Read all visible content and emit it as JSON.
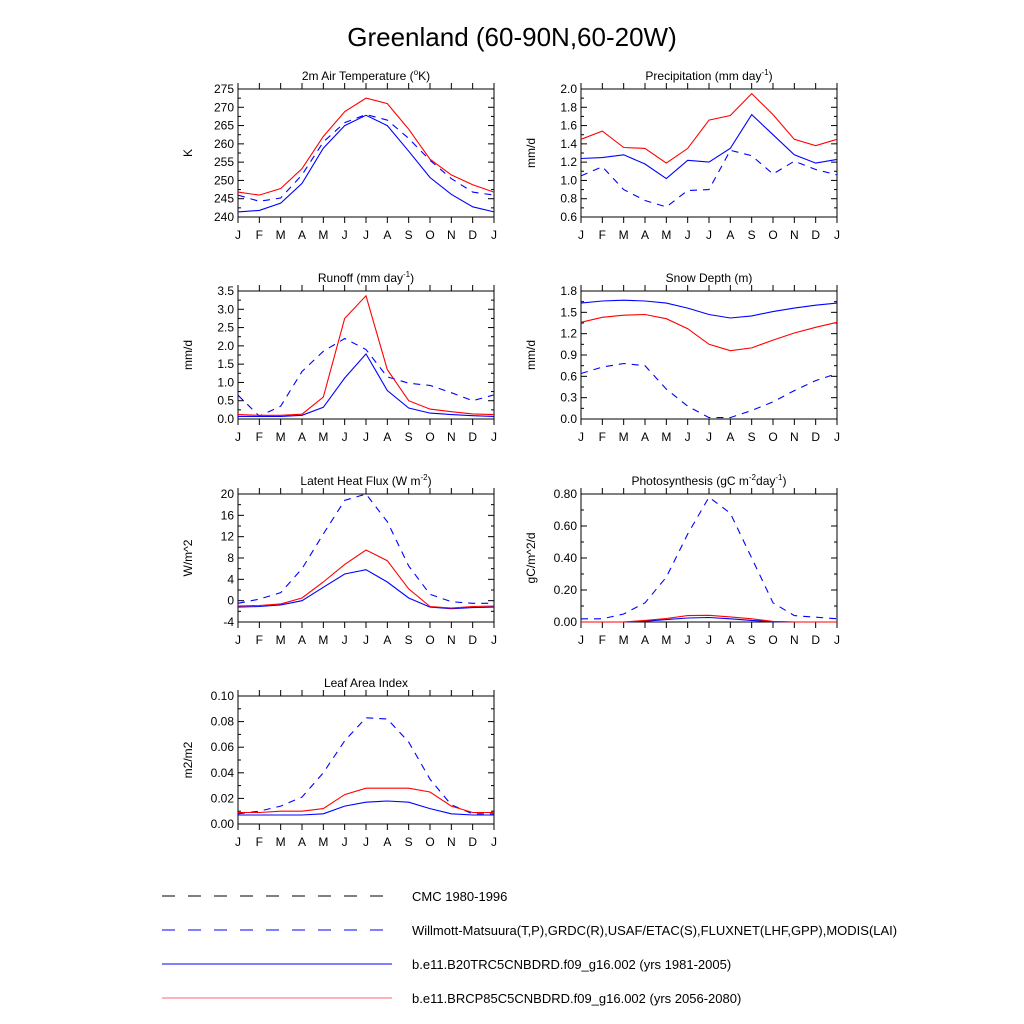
{
  "figure": {
    "title": "Greenland (60-90N,60-20W)"
  },
  "months": [
    "J",
    "F",
    "M",
    "A",
    "M",
    "J",
    "J",
    "A",
    "S",
    "O",
    "N",
    "D",
    "J"
  ],
  "colors": {
    "obs": "#0000ff",
    "obs_black": "#000000",
    "run1": "#0000ff",
    "run2": "#ff0000"
  },
  "chart_data": [
    {
      "type": "line",
      "title": "2m Air Temperature",
      "title_units_pre": " (",
      "title_units_sup": "o",
      "title_units_post": "K)",
      "ylabel": "K",
      "ylim": [
        240,
        275
      ],
      "yticks": [
        240,
        245,
        250,
        255,
        260,
        265,
        270,
        275
      ],
      "ytick_labels": [
        "240",
        "245",
        "250",
        "255",
        "260",
        "265",
        "270",
        "275"
      ],
      "x": [
        "J",
        "F",
        "M",
        "A",
        "M",
        "J",
        "J",
        "A",
        "S",
        "O",
        "N",
        "D",
        "J"
      ],
      "series": [
        {
          "key": "obs",
          "style": "dashed",
          "color": "#0000ff",
          "values": [
            246,
            244.3,
            245.2,
            251.5,
            260.5,
            265.8,
            268,
            266.5,
            261.5,
            255.5,
            250.5,
            246.8,
            246
          ]
        },
        {
          "key": "run1",
          "style": "solid",
          "color": "#0000ff",
          "values": [
            241.4,
            241.8,
            243.8,
            249.2,
            258.8,
            265,
            267.8,
            265,
            258,
            250.8,
            246.2,
            242.8,
            241.4
          ]
        },
        {
          "key": "run2",
          "style": "solid",
          "color": "#ff0000",
          "values": [
            246.8,
            246,
            247.8,
            253.2,
            262,
            268.8,
            272.5,
            271,
            264,
            255.8,
            251.5,
            248.8,
            246.8
          ]
        }
      ]
    },
    {
      "type": "line",
      "title": "Precipitation",
      "title_units_pre": " (mm day",
      "title_units_sup": "-1",
      "title_units_post": ")",
      "ylabel": "mm/d",
      "ylim": [
        0.6,
        2.0
      ],
      "yticks": [
        0.6,
        0.8,
        1.0,
        1.2,
        1.4,
        1.6,
        1.8,
        2.0
      ],
      "ytick_labels": [
        "0.6",
        "0.8",
        "1.0",
        "1.2",
        "1.4",
        "1.6",
        "1.8",
        "2.0"
      ],
      "x": [
        "J",
        "F",
        "M",
        "A",
        "M",
        "J",
        "J",
        "A",
        "S",
        "O",
        "N",
        "D",
        "J"
      ],
      "series": [
        {
          "key": "obs",
          "style": "dashed",
          "color": "#0000ff",
          "values": [
            1.05,
            1.15,
            0.9,
            0.78,
            0.71,
            0.89,
            0.9,
            1.33,
            1.27,
            1.07,
            1.21,
            1.12,
            1.06
          ]
        },
        {
          "key": "run1",
          "style": "solid",
          "color": "#0000ff",
          "values": [
            1.24,
            1.25,
            1.28,
            1.18,
            1.02,
            1.22,
            1.2,
            1.35,
            1.72,
            1.5,
            1.28,
            1.19,
            1.23
          ]
        },
        {
          "key": "run2",
          "style": "solid",
          "color": "#ff0000",
          "values": [
            1.45,
            1.54,
            1.36,
            1.35,
            1.19,
            1.35,
            1.66,
            1.71,
            1.95,
            1.72,
            1.45,
            1.38,
            1.45
          ]
        }
      ]
    },
    {
      "type": "line",
      "title": "Runoff",
      "title_units_pre": " (mm day",
      "title_units_sup": "-1",
      "title_units_post": ")",
      "ylabel": "mm/d",
      "ylim": [
        0.0,
        3.5
      ],
      "yticks": [
        0.0,
        0.5,
        1.0,
        1.5,
        2.0,
        2.5,
        3.0,
        3.5
      ],
      "ytick_labels": [
        "0.0",
        "0.5",
        "1.0",
        "1.5",
        "2.0",
        "2.5",
        "3.0",
        "3.5"
      ],
      "x": [
        "J",
        "F",
        "M",
        "A",
        "M",
        "J",
        "J",
        "A",
        "S",
        "O",
        "N",
        "D",
        "J"
      ],
      "series": [
        {
          "key": "obs",
          "style": "dashed",
          "color": "#0000ff",
          "values": [
            0.65,
            0.08,
            0.35,
            1.3,
            1.85,
            2.2,
            1.9,
            1.15,
            0.98,
            0.92,
            0.72,
            0.5,
            0.66
          ]
        },
        {
          "key": "run1",
          "style": "solid",
          "color": "#0000ff",
          "values": [
            0.07,
            0.07,
            0.07,
            0.1,
            0.32,
            1.12,
            1.78,
            0.78,
            0.3,
            0.16,
            0.12,
            0.09,
            0.07
          ]
        },
        {
          "key": "run2",
          "style": "solid",
          "color": "#ff0000",
          "values": [
            0.12,
            0.1,
            0.1,
            0.13,
            0.6,
            2.75,
            3.37,
            1.35,
            0.5,
            0.27,
            0.2,
            0.14,
            0.12
          ]
        }
      ]
    },
    {
      "type": "line",
      "title": "Snow Depth (m)",
      "title_units_pre": "",
      "title_units_sup": "",
      "title_units_post": "",
      "ylabel": "mm/d",
      "ylim": [
        0.0,
        1.8
      ],
      "yticks": [
        0.0,
        0.3,
        0.6,
        0.9,
        1.2,
        1.5,
        1.8
      ],
      "ytick_labels": [
        "0.0",
        "0.3",
        "0.6",
        "0.9",
        "1.2",
        "1.5",
        "1.8"
      ],
      "x": [
        "J",
        "F",
        "M",
        "A",
        "M",
        "J",
        "J",
        "A",
        "S",
        "O",
        "N",
        "D",
        "J"
      ],
      "series": [
        {
          "key": "obs_black",
          "style": "dashed",
          "color": "#000000",
          "values": [
            0,
            0,
            0,
            0,
            0,
            0,
            0,
            0,
            0,
            0,
            0,
            0,
            0
          ]
        },
        {
          "key": "obs",
          "style": "dashed",
          "color": "#0000ff",
          "values": [
            0.64,
            0.73,
            0.78,
            0.75,
            0.42,
            0.18,
            0.02,
            0.02,
            0.12,
            0.24,
            0.4,
            0.54,
            0.64
          ]
        },
        {
          "key": "run1",
          "style": "solid",
          "color": "#0000ff",
          "values": [
            1.63,
            1.66,
            1.67,
            1.66,
            1.63,
            1.56,
            1.47,
            1.42,
            1.45,
            1.51,
            1.56,
            1.6,
            1.63
          ]
        },
        {
          "key": "run2",
          "style": "solid",
          "color": "#ff0000",
          "values": [
            1.36,
            1.43,
            1.46,
            1.47,
            1.41,
            1.27,
            1.05,
            0.96,
            1.0,
            1.11,
            1.21,
            1.29,
            1.36
          ]
        }
      ]
    },
    {
      "type": "line",
      "title": "Latent Heat Flux",
      "title_units_pre": " (W m",
      "title_units_sup": "-2",
      "title_units_post": ")",
      "ylabel": "W/m^2",
      "ylim": [
        -4,
        20
      ],
      "yticks": [
        -4,
        0,
        4,
        8,
        12,
        16,
        20
      ],
      "ytick_labels": [
        "-4",
        "0",
        "4",
        "8",
        "12",
        "16",
        "20"
      ],
      "x": [
        "J",
        "F",
        "M",
        "A",
        "M",
        "J",
        "J",
        "A",
        "S",
        "O",
        "N",
        "D",
        "J"
      ],
      "series": [
        {
          "key": "obs",
          "style": "dashed",
          "color": "#0000ff",
          "values": [
            -0.5,
            0.3,
            1.5,
            6,
            12.5,
            18.8,
            20,
            14.8,
            6.5,
            1.2,
            -0.2,
            -0.5,
            -0.5
          ]
        },
        {
          "key": "run1",
          "style": "solid",
          "color": "#0000ff",
          "values": [
            -1.2,
            -1.1,
            -0.8,
            0,
            2.5,
            5,
            5.8,
            3.5,
            0.5,
            -1.2,
            -1.5,
            -1.3,
            -1.2
          ]
        },
        {
          "key": "run2",
          "style": "solid",
          "color": "#ff0000",
          "values": [
            -1,
            -0.9,
            -0.6,
            0.5,
            3.5,
            6.8,
            9.5,
            7.5,
            2.2,
            -1.1,
            -1.4,
            -1.1,
            -1
          ]
        }
      ]
    },
    {
      "type": "line",
      "title": "Photosynthesis",
      "title_units_pre": " (gC m",
      "title_units_sup": "-2",
      "title_units_post": "day",
      "title_units_sup2": "-1",
      "title_units_post2": ")",
      "ylabel": "gC/m^2/d",
      "ylim": [
        0.0,
        0.8
      ],
      "yticks": [
        0.0,
        0.2,
        0.4,
        0.6,
        0.8
      ],
      "ytick_labels": [
        "0.00",
        "0.20",
        "0.40",
        "0.60",
        "0.80"
      ],
      "x": [
        "J",
        "F",
        "M",
        "A",
        "M",
        "J",
        "J",
        "A",
        "S",
        "O",
        "N",
        "D",
        "J"
      ],
      "series": [
        {
          "key": "obs",
          "style": "dashed",
          "color": "#0000ff",
          "values": [
            0.02,
            0.02,
            0.05,
            0.12,
            0.28,
            0.55,
            0.78,
            0.68,
            0.4,
            0.12,
            0.04,
            0.03,
            0.02
          ]
        },
        {
          "key": "run1",
          "style": "solid",
          "color": "#0000ff",
          "values": [
            0,
            0,
            0,
            0.005,
            0.015,
            0.025,
            0.028,
            0.02,
            0.01,
            0.002,
            0,
            0,
            0
          ]
        },
        {
          "key": "run2",
          "style": "solid",
          "color": "#ff0000",
          "values": [
            0,
            0,
            0,
            0.01,
            0.022,
            0.04,
            0.042,
            0.032,
            0.02,
            0.004,
            0,
            0,
            0
          ]
        }
      ]
    },
    {
      "type": "line",
      "title": "Leaf Area Index",
      "title_units_pre": "",
      "title_units_sup": "",
      "title_units_post": "",
      "ylabel": "m2/m2",
      "ylim": [
        0.0,
        0.1
      ],
      "yticks": [
        0.0,
        0.02,
        0.04,
        0.06,
        0.08,
        0.1
      ],
      "ytick_labels": [
        "0.00",
        "0.02",
        "0.04",
        "0.06",
        "0.08",
        "0.10"
      ],
      "x": [
        "J",
        "F",
        "M",
        "A",
        "M",
        "J",
        "J",
        "A",
        "S",
        "O",
        "N",
        "D",
        "J"
      ],
      "series": [
        {
          "key": "obs",
          "style": "dashed",
          "color": "#0000ff",
          "values": [
            0.008,
            0.01,
            0.014,
            0.021,
            0.04,
            0.065,
            0.083,
            0.082,
            0.064,
            0.035,
            0.015,
            0.008,
            0.008
          ]
        },
        {
          "key": "run1",
          "style": "solid",
          "color": "#0000ff",
          "values": [
            0.007,
            0.007,
            0.007,
            0.007,
            0.008,
            0.014,
            0.017,
            0.018,
            0.017,
            0.012,
            0.008,
            0.007,
            0.007
          ]
        },
        {
          "key": "run2",
          "style": "solid",
          "color": "#ff0000",
          "values": [
            0.009,
            0.009,
            0.01,
            0.01,
            0.012,
            0.023,
            0.028,
            0.028,
            0.028,
            0.025,
            0.014,
            0.009,
            0.009
          ]
        }
      ]
    }
  ],
  "legend": [
    {
      "label": "CMC 1980-1996",
      "color": "#000000",
      "style": "dashed"
    },
    {
      "label": "Willmott-Matsuura(T,P),GRDC(R),USAF/ETAC(S),FLUXNET(LHF,GPP),MODIS(LAI)",
      "color": "#0000ff",
      "style": "dashed"
    },
    {
      "label": "b.e11.B20TRC5CNBDRD.f09_g16.002 (yrs 1981-2005)",
      "color": "#0000ff",
      "style": "solid"
    },
    {
      "label": "b.e11.BRCP85C5CNBDRD.f09_g16.002 (yrs 2056-2080)",
      "color": "#ff6070",
      "style": "solid"
    }
  ]
}
